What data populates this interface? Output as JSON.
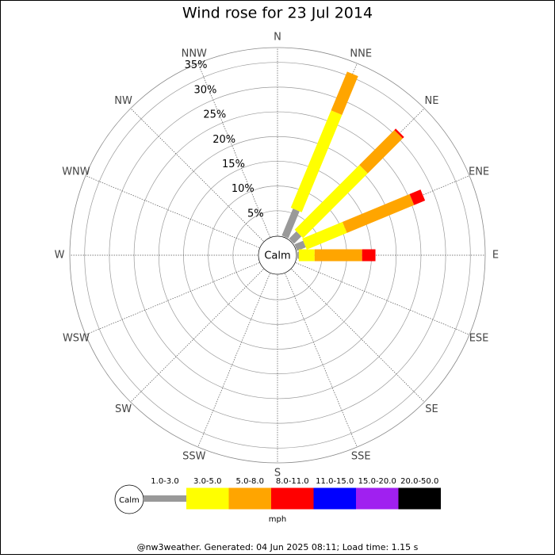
{
  "chart_data": {
    "type": "windrose",
    "title": "Wind rose for 23 Jul 2014",
    "calm_label": "Calm",
    "unit": "mph",
    "footer": "@nw3weather. Generated: 04 Jun 2025 08:11; Load time: 1.15 s",
    "categories": [
      "N",
      "NNE",
      "NE",
      "ENE",
      "E",
      "ESE",
      "SE",
      "SSE",
      "S",
      "SSW",
      "SW",
      "WSW",
      "W",
      "WNW",
      "NW",
      "NNW"
    ],
    "series": [
      {
        "name": "1.0-3.0",
        "color": "#999999",
        "values": [
          0,
          5.9,
          2.1,
          1.9,
          0.3,
          0,
          0,
          0,
          0,
          0,
          0,
          0,
          0,
          0,
          0,
          0
        ]
      },
      {
        "name": "3.0-5.0",
        "color": "#ffff00",
        "values": [
          0,
          21.3,
          18.5,
          8.8,
          3.2,
          0,
          0,
          0,
          0,
          0,
          0,
          0,
          0,
          0,
          0,
          0
        ]
      },
      {
        "name": "5.0-8.0",
        "color": "#ffa500",
        "values": [
          0,
          8.5,
          10.0,
          14.7,
          9.6,
          0,
          0,
          0,
          0,
          0,
          0,
          0,
          0,
          0,
          0,
          0
        ]
      },
      {
        "name": "8.0-11.0",
        "color": "#ff0000",
        "values": [
          0,
          0,
          0.4,
          2.4,
          2.7,
          0,
          0,
          0,
          0,
          0,
          0,
          0,
          0,
          0,
          0,
          0
        ]
      },
      {
        "name": "11.0-15.0",
        "color": "#0000ff",
        "values": [
          0,
          0,
          0,
          0,
          0,
          0,
          0,
          0,
          0,
          0,
          0,
          0,
          0,
          0,
          0,
          0
        ]
      },
      {
        "name": "15.0-20.0",
        "color": "#a020f0",
        "values": [
          0,
          0,
          0,
          0,
          0,
          0,
          0,
          0,
          0,
          0,
          0,
          0,
          0,
          0,
          0,
          0
        ]
      },
      {
        "name": "20.0-50.0",
        "color": "#000000",
        "values": [
          0,
          0,
          0,
          0,
          0,
          0,
          0,
          0,
          0,
          0,
          0,
          0,
          0,
          0,
          0,
          0
        ]
      }
    ],
    "rlim": [
      0,
      38
    ],
    "rticks": [
      {
        "value": 5,
        "label": "5%"
      },
      {
        "value": 10,
        "label": "10%"
      },
      {
        "value": 15,
        "label": "15%"
      },
      {
        "value": 20,
        "label": "20%"
      },
      {
        "value": 25,
        "label": "25%"
      },
      {
        "value": 30,
        "label": "30%"
      },
      {
        "value": 35,
        "label": "35%"
      }
    ]
  }
}
